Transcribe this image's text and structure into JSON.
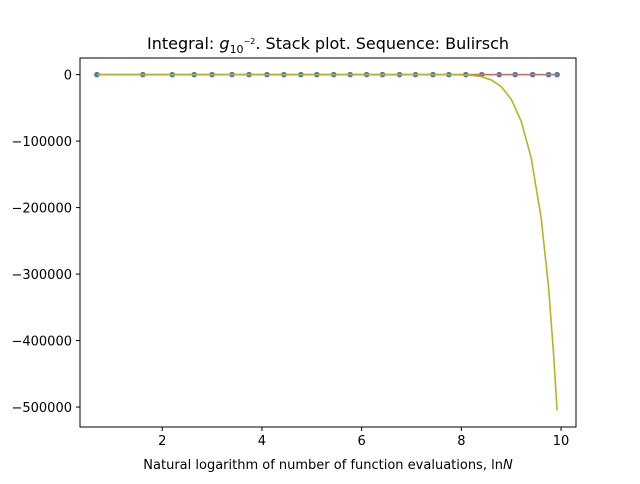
{
  "chart_data": {
    "type": "line",
    "title": {
      "prefix": "Integral: ",
      "symbol": "g",
      "subscript": "10",
      "superscript": "−2",
      "suffix": ". Stack plot. Sequence: Bulirsch"
    },
    "xlabel": {
      "text": "Natural logarithm of number of function evaluations, ln",
      "italic": "N"
    },
    "ylabel": "",
    "xlim": [
      0.35,
      10.3
    ],
    "ylim": [
      -530000,
      25000
    ],
    "xticks": [
      {
        "value": 2,
        "label": "2"
      },
      {
        "value": 4,
        "label": "4"
      },
      {
        "value": 6,
        "label": "6"
      },
      {
        "value": 8,
        "label": "8"
      },
      {
        "value": 10,
        "label": "10"
      }
    ],
    "yticks": [
      {
        "value": 0,
        "label": "0"
      },
      {
        "value": -100000,
        "label": "−100000"
      },
      {
        "value": -200000,
        "label": "−200000"
      },
      {
        "value": -300000,
        "label": "−300000"
      },
      {
        "value": -400000,
        "label": "−400000"
      },
      {
        "value": -500000,
        "label": "−500000"
      }
    ],
    "grid": false,
    "legend": "none",
    "series": [
      {
        "style": "line-with-markers",
        "color": "#4a7ab5",
        "x": [
          0.69,
          1.61,
          2.2,
          2.64,
          3.0,
          3.4,
          3.74,
          4.1,
          4.44,
          4.78,
          5.1,
          5.44,
          5.77,
          6.1,
          6.42,
          6.76,
          7.08,
          7.43,
          7.75,
          8.09,
          8.41,
          8.76,
          9.08,
          9.43,
          9.75,
          9.92
        ],
        "values": [
          0,
          0,
          0,
          0,
          0,
          0,
          0,
          0,
          0,
          0,
          0,
          0,
          0,
          0,
          0,
          0,
          0,
          0,
          0,
          0,
          0,
          0,
          0,
          0,
          0,
          0
        ]
      },
      {
        "style": "line",
        "color": "#d1706a",
        "x": [
          0.69,
          9.92
        ],
        "values": [
          0,
          0
        ]
      },
      {
        "style": "line",
        "color": "#b5b51f",
        "x": [
          0.69,
          7.5,
          8.0,
          8.2,
          8.4,
          8.6,
          8.8,
          9.0,
          9.2,
          9.4,
          9.6,
          9.75,
          9.85,
          9.92
        ],
        "values": [
          0,
          0,
          -300,
          -1000,
          -3000,
          -8000,
          -18000,
          -37000,
          -70000,
          -125000,
          -215000,
          -320000,
          -420000,
          -505000
        ]
      }
    ]
  }
}
